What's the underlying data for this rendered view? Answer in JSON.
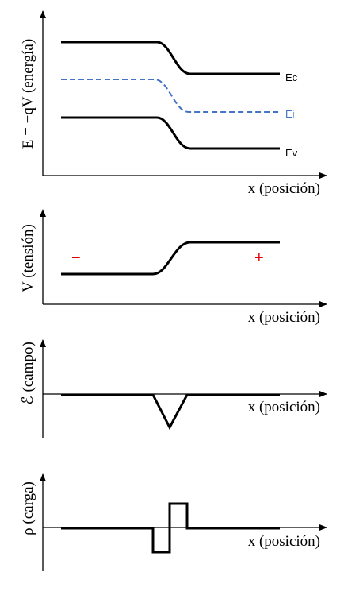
{
  "panels": {
    "energy": {
      "ylabel": "E = −qV (energía)",
      "xlabel": "x (posición)",
      "series": [
        {
          "name": "Ec",
          "color": "#000000",
          "style": "solid"
        },
        {
          "name": "Ei",
          "color": "#4472c4",
          "style": "dashed"
        },
        {
          "name": "Ev",
          "color": "#000000",
          "style": "solid"
        }
      ]
    },
    "voltage": {
      "ylabel": "V (tensión)",
      "xlabel": "x (posición)",
      "minus_sign": "−",
      "plus_sign": "+",
      "sign_color": "#e00000"
    },
    "field": {
      "ylabel": "ℰ (campo)",
      "xlabel": "x (posición)"
    },
    "charge": {
      "ylabel": "ρ (carga)",
      "xlabel": "x (posición)"
    }
  }
}
